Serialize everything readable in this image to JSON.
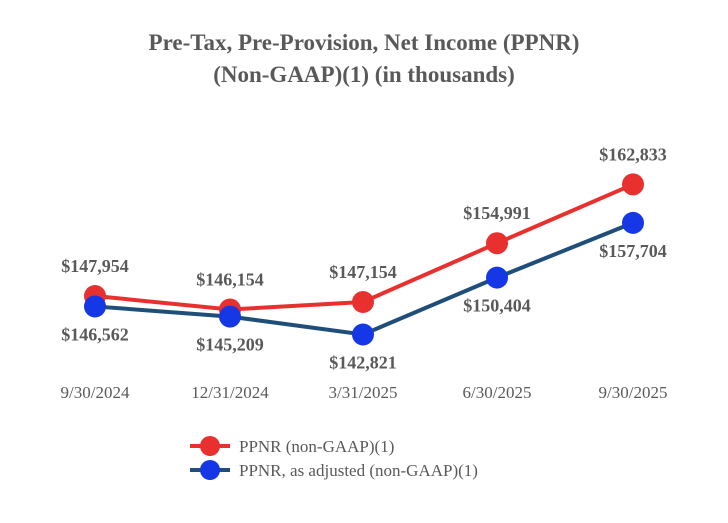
{
  "chart_data": {
    "type": "line",
    "title": [
      "Pre-Tax, Pre-Provision, Net Income (PPNR)",
      "(Non-GAAP)(1) (in thousands)"
    ],
    "xlabel": "",
    "ylabel": "",
    "grid": false,
    "legend_position": "bottom",
    "categories": [
      "9/30/2024",
      "12/31/2024",
      "3/31/2025",
      "6/30/2025",
      "9/30/2025"
    ],
    "series": [
      {
        "name": "PPNR (non-GAAP)(1)",
        "values": [
          147954,
          146154,
          147154,
          154991,
          162833
        ],
        "labels": [
          "$147,954",
          "$146,154",
          "$147,154",
          "$154,991",
          "$162,833"
        ],
        "line_color": "#e8312f",
        "marker_color": "#e8312f"
      },
      {
        "name": "PPNR, as adjusted (non-GAAP)(1)",
        "values": [
          146562,
          145209,
          142821,
          150404,
          157704
        ],
        "labels": [
          "$146,562",
          "$145,209",
          "$142,821",
          "$150,404",
          "$157,704"
        ],
        "line_color": "#1f4e79",
        "marker_color": "#1637e6"
      }
    ],
    "text_color": "#595959"
  }
}
